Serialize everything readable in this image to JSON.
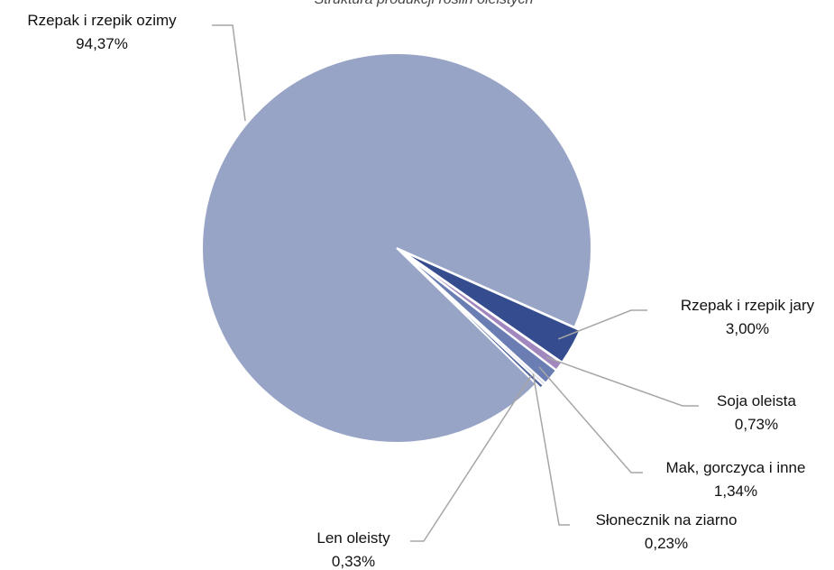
{
  "chart_data": {
    "type": "pie",
    "title": "Struktura produkcji roślin oleistych",
    "slices": [
      {
        "label": "Rzepak i rzepik ozimy",
        "value_label": "94,37%",
        "value": 94.37,
        "color": "#97A4C6"
      },
      {
        "label": "Rzepak i rzepik jary",
        "value_label": "3,00%",
        "value": 3.0,
        "color": "#354D8F"
      },
      {
        "label": "Soja oleista",
        "value_label": "0,73%",
        "value": 0.73,
        "color": "#A087BD"
      },
      {
        "label": "Mak, gorczyca i inne",
        "value_label": "1,34%",
        "value": 1.34,
        "color": "#6B7EB4"
      },
      {
        "label": "Słonecznik na ziarno",
        "value_label": "0,23%",
        "value": 0.23,
        "color": "#C8CFE3"
      },
      {
        "label": "Len oleisty",
        "value_label": "0,33%",
        "value": 0.33,
        "color": "#4E629D"
      }
    ]
  }
}
